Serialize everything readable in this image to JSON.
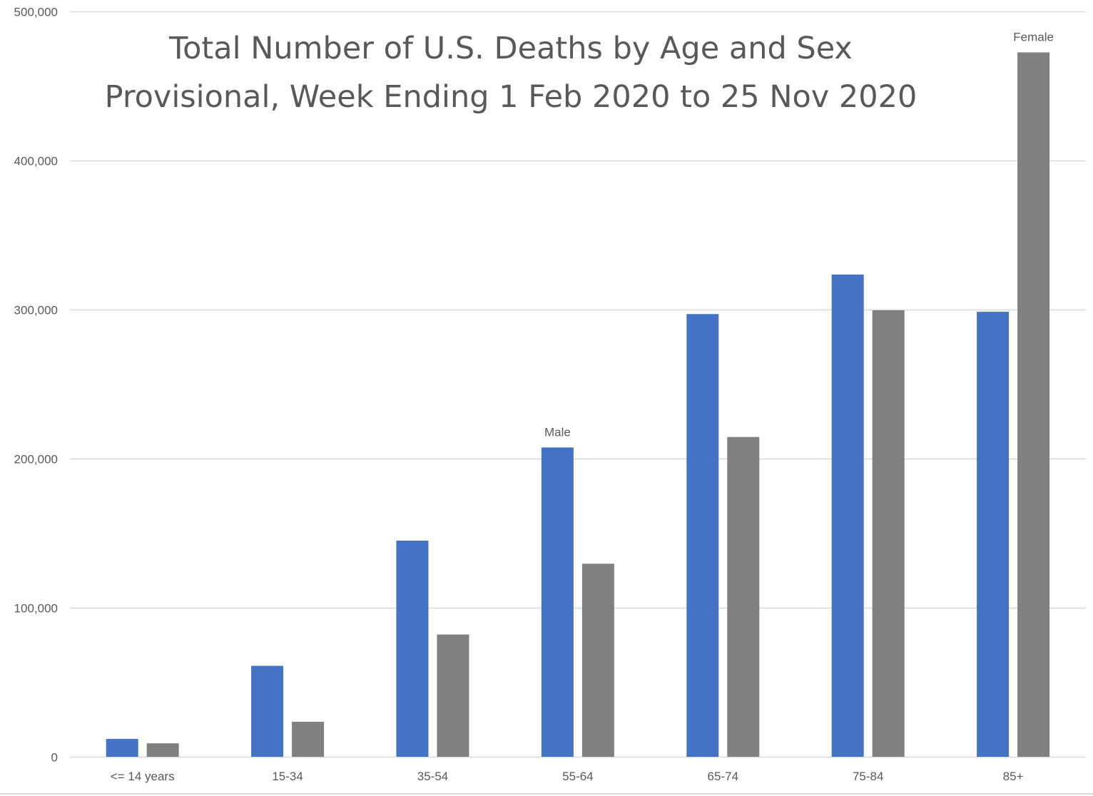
{
  "chart_data": {
    "type": "bar",
    "title": "Total Number of U.S. Deaths by Age and Sex",
    "subtitle": "Provisional, Week Ending 1 Feb 2020 to 25 Nov 2020",
    "xlabel": "",
    "ylabel": "",
    "categories": [
      "<= 14 years",
      "15-34",
      "35-54",
      "55-64",
      "65-74",
      "75-84",
      "85+"
    ],
    "series": [
      {
        "name": "Male",
        "color": "#4472C4",
        "values": [
          12000,
          61000,
          145000,
          207500,
          297000,
          323500,
          298500
        ]
      },
      {
        "name": "Female",
        "color": "#808080",
        "values": [
          9000,
          23500,
          82000,
          129500,
          214500,
          299500,
          472500
        ]
      }
    ],
    "ylim": [
      0,
      500000
    ],
    "yticks": [
      0,
      100000,
      200000,
      300000,
      400000,
      500000
    ],
    "ytick_labels": [
      "0",
      "100,000",
      "200,000",
      "300,000",
      "400,000",
      "500,000"
    ],
    "grid": true,
    "legend": "none",
    "annotations": [
      {
        "text": "Male",
        "category": "55-64",
        "series": "Male"
      },
      {
        "text": "Female",
        "category": "85+",
        "series": "Female"
      }
    ],
    "colors": {
      "grid": "#d9d9d9",
      "axis_text": "#595959",
      "title": "#595959"
    }
  }
}
